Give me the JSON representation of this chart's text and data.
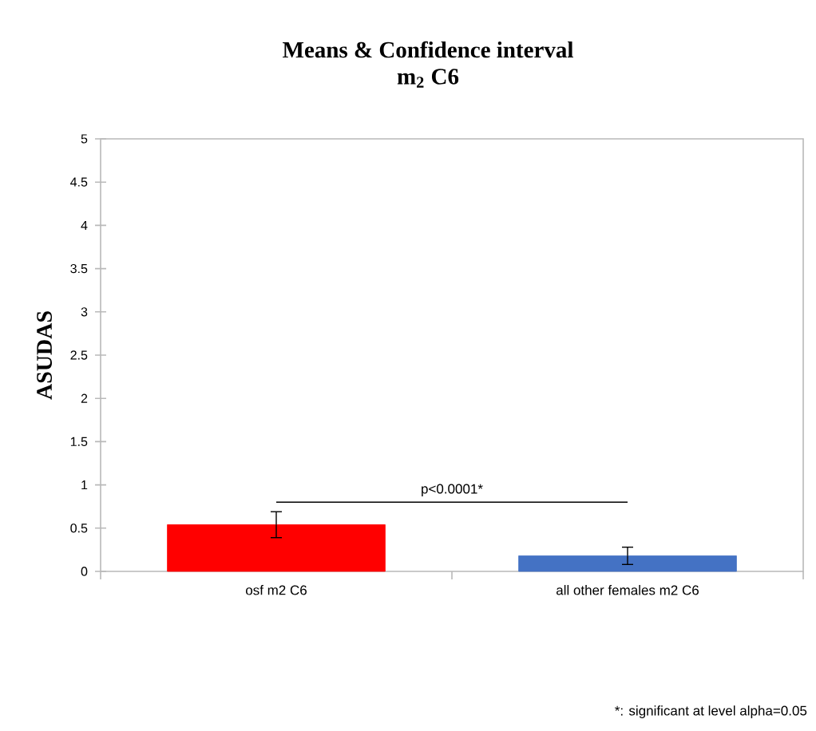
{
  "chart_data": {
    "type": "bar",
    "title": "Means & Confidence interval",
    "subtitle": "m$_{2}$ C6",
    "ylabel": "ASUDAS",
    "categories": [
      "osf m2 C6",
      "all other females m2 C6"
    ],
    "values": [
      0.54,
      0.18
    ],
    "colors": [
      "#ff0000",
      "#4472c4"
    ],
    "errors": [
      0.15,
      0.1
    ],
    "ylim": [
      0,
      5
    ],
    "yticks": [
      0,
      0.5,
      1,
      1.5,
      2,
      2.5,
      3,
      3.5,
      4,
      4.5,
      5
    ],
    "annotations": [
      "p<0.0001*",
      "*: significant at level alpha=0.05"
    ]
  }
}
